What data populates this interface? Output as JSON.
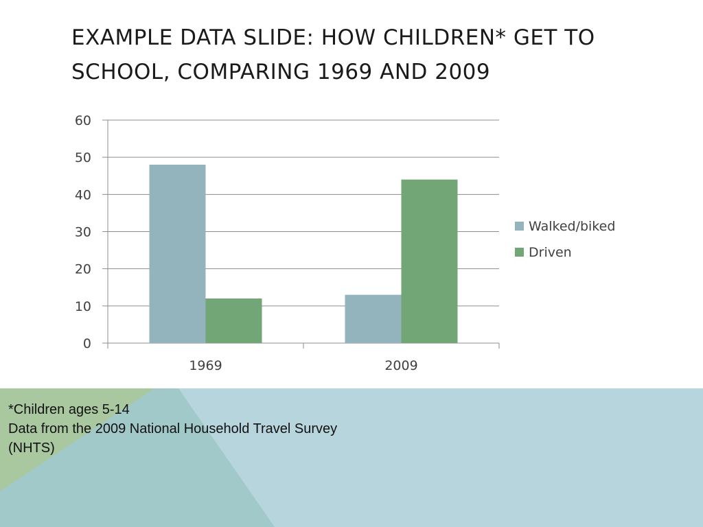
{
  "slide": {
    "title": "Example data slide: How children* get to school, comparing 1969 and 2009"
  },
  "footer": {
    "notes": [
      "*Children ages 5-14",
      "Data from the 2009 National Household Travel Survey",
      "(NHTS)"
    ]
  },
  "colors": {
    "walked": "#93b3bd",
    "driven": "#72a676",
    "footer_blue": "#b7d5dc",
    "footer_green": "#a9c89f",
    "footer_teal": "#a2c9c9"
  },
  "chart_data": {
    "type": "bar",
    "categories": [
      "1969",
      "2009"
    ],
    "series": [
      {
        "name": "Walked/biked",
        "values": [
          48,
          13
        ]
      },
      {
        "name": "Driven",
        "values": [
          12,
          44
        ]
      }
    ],
    "ylim": [
      0,
      60
    ],
    "yticks": [
      "0",
      "10",
      "20",
      "30",
      "40",
      "50",
      "60"
    ],
    "xlabel": "",
    "ylabel": "",
    "grid": true,
    "legend_position": "right"
  }
}
